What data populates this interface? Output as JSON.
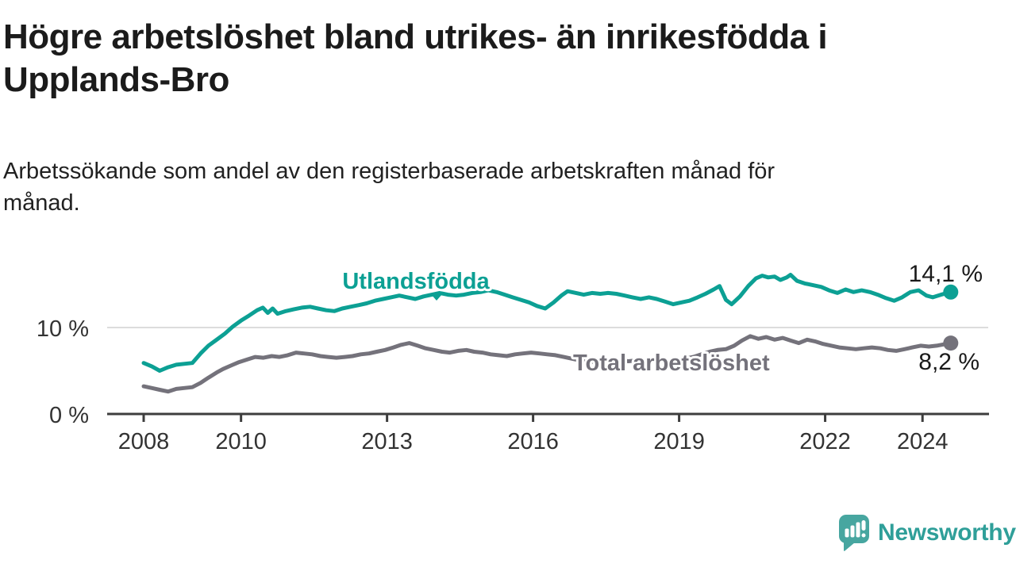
{
  "header": {
    "title": "Högre arbetslöshet bland utrikes- än inrikesfödda i Upplands-Bro",
    "title_lines": [
      "Högre arbetslöshet bland utrikes- än inrikesfödda i",
      "Upplands-Bro"
    ],
    "subtitle": "Arbetssökande som andel av den registerbaserade arbetskraften månad för månad.",
    "subtitle_lines": [
      "Arbetssökande som andel av den registerbaserade arbetskraften månad för",
      "månad."
    ]
  },
  "footer": {
    "brand": "Newsworthy",
    "brand_color": "#2f9f99",
    "logo_icon": "speech-bubble-bar-chart"
  },
  "colors": {
    "foreign_born_line": "#0ca094",
    "total_line": "#74727b",
    "gridline": "#dcdcdc",
    "axis": "#3d3d3d",
    "value_text": "#1a1a1a"
  },
  "chart_data": {
    "type": "line",
    "title": "Högre arbetslöshet bland utrikes- än inrikesfödda i Upplands-Bro",
    "subtitle": "Arbetssökande som andel av den registerbaserade arbetskraften månad för månad.",
    "xlabel": "",
    "ylabel": "",
    "grid": "horizontal-10-only",
    "legend_position": "inline-labels",
    "x_axis": {
      "domain": [
        2007.25,
        2025.35
      ],
      "ticks": [
        2008,
        2010,
        2013,
        2016,
        2019,
        2022,
        2024
      ],
      "tick_labels": [
        "2008",
        "2010",
        "2013",
        "2016",
        "2019",
        "2022",
        "2024"
      ]
    },
    "y_axis": {
      "domain": [
        0,
        19
      ],
      "ticks": [
        0,
        10
      ],
      "tick_labels": [
        "0 %",
        "10 %"
      ]
    },
    "series": [
      {
        "name": "Utlandsfödda",
        "color": "#0ca094",
        "end_value": 14.1,
        "end_label": "14,1 %",
        "points": [
          [
            2008.0,
            5.9
          ],
          [
            2008.17,
            5.5
          ],
          [
            2008.33,
            5.0
          ],
          [
            2008.5,
            5.4
          ],
          [
            2008.67,
            5.7
          ],
          [
            2008.83,
            5.8
          ],
          [
            2009.0,
            5.9
          ],
          [
            2009.17,
            7.0
          ],
          [
            2009.33,
            7.9
          ],
          [
            2009.5,
            8.6
          ],
          [
            2009.67,
            9.3
          ],
          [
            2009.83,
            10.1
          ],
          [
            2010.0,
            10.8
          ],
          [
            2010.17,
            11.4
          ],
          [
            2010.33,
            12.0
          ],
          [
            2010.45,
            12.3
          ],
          [
            2010.55,
            11.7
          ],
          [
            2010.65,
            12.2
          ],
          [
            2010.75,
            11.6
          ],
          [
            2010.92,
            11.9
          ],
          [
            2011.08,
            12.1
          ],
          [
            2011.25,
            12.3
          ],
          [
            2011.42,
            12.4
          ],
          [
            2011.58,
            12.2
          ],
          [
            2011.75,
            12.0
          ],
          [
            2011.92,
            11.9
          ],
          [
            2012.08,
            12.2
          ],
          [
            2012.25,
            12.4
          ],
          [
            2012.42,
            12.6
          ],
          [
            2012.58,
            12.8
          ],
          [
            2012.75,
            13.1
          ],
          [
            2012.92,
            13.3
          ],
          [
            2013.08,
            13.5
          ],
          [
            2013.25,
            13.7
          ],
          [
            2013.42,
            13.5
          ],
          [
            2013.58,
            13.3
          ],
          [
            2013.75,
            13.6
          ],
          [
            2013.92,
            13.8
          ],
          [
            2014.08,
            14.0
          ],
          [
            2014.25,
            13.8
          ],
          [
            2014.42,
            13.7
          ],
          [
            2014.58,
            13.8
          ],
          [
            2014.75,
            14.0
          ],
          [
            2014.92,
            14.1
          ],
          [
            2015.08,
            14.3
          ],
          [
            2015.25,
            14.1
          ],
          [
            2015.42,
            13.8
          ],
          [
            2015.58,
            13.5
          ],
          [
            2015.75,
            13.2
          ],
          [
            2015.92,
            12.9
          ],
          [
            2016.08,
            12.5
          ],
          [
            2016.25,
            12.2
          ],
          [
            2016.42,
            12.9
          ],
          [
            2016.58,
            13.7
          ],
          [
            2016.71,
            14.2
          ],
          [
            2016.88,
            14.0
          ],
          [
            2017.04,
            13.8
          ],
          [
            2017.21,
            14.0
          ],
          [
            2017.38,
            13.9
          ],
          [
            2017.54,
            14.0
          ],
          [
            2017.71,
            13.9
          ],
          [
            2017.88,
            13.7
          ],
          [
            2018.04,
            13.5
          ],
          [
            2018.21,
            13.3
          ],
          [
            2018.38,
            13.5
          ],
          [
            2018.54,
            13.3
          ],
          [
            2018.71,
            13.0
          ],
          [
            2018.88,
            12.7
          ],
          [
            2019.04,
            12.9
          ],
          [
            2019.21,
            13.1
          ],
          [
            2019.38,
            13.5
          ],
          [
            2019.54,
            13.9
          ],
          [
            2019.71,
            14.4
          ],
          [
            2019.83,
            14.8
          ],
          [
            2019.96,
            13.2
          ],
          [
            2020.08,
            12.7
          ],
          [
            2020.25,
            13.6
          ],
          [
            2020.42,
            14.8
          ],
          [
            2020.58,
            15.7
          ],
          [
            2020.71,
            16.0
          ],
          [
            2020.83,
            15.8
          ],
          [
            2020.96,
            15.9
          ],
          [
            2021.08,
            15.5
          ],
          [
            2021.21,
            15.8
          ],
          [
            2021.29,
            16.1
          ],
          [
            2021.42,
            15.4
          ],
          [
            2021.58,
            15.1
          ],
          [
            2021.75,
            14.9
          ],
          [
            2021.92,
            14.7
          ],
          [
            2022.08,
            14.3
          ],
          [
            2022.25,
            14.0
          ],
          [
            2022.42,
            14.4
          ],
          [
            2022.58,
            14.1
          ],
          [
            2022.75,
            14.3
          ],
          [
            2022.92,
            14.1
          ],
          [
            2023.08,
            13.8
          ],
          [
            2023.25,
            13.4
          ],
          [
            2023.42,
            13.1
          ],
          [
            2023.58,
            13.5
          ],
          [
            2023.75,
            14.1
          ],
          [
            2023.92,
            14.3
          ],
          [
            2024.08,
            13.7
          ],
          [
            2024.21,
            13.5
          ],
          [
            2024.38,
            13.8
          ],
          [
            2024.58,
            14.1
          ]
        ]
      },
      {
        "name": "Total arbetslöshet",
        "color": "#74727b",
        "end_value": 8.2,
        "end_label": "8,2 %",
        "points": [
          [
            2008.0,
            3.2
          ],
          [
            2008.17,
            3.0
          ],
          [
            2008.33,
            2.8
          ],
          [
            2008.5,
            2.6
          ],
          [
            2008.67,
            2.9
          ],
          [
            2008.83,
            3.0
          ],
          [
            2009.0,
            3.1
          ],
          [
            2009.17,
            3.6
          ],
          [
            2009.33,
            4.2
          ],
          [
            2009.5,
            4.8
          ],
          [
            2009.63,
            5.2
          ],
          [
            2009.79,
            5.6
          ],
          [
            2009.96,
            6.0
          ],
          [
            2010.13,
            6.3
          ],
          [
            2010.29,
            6.6
          ],
          [
            2010.46,
            6.5
          ],
          [
            2010.63,
            6.7
          ],
          [
            2010.79,
            6.6
          ],
          [
            2010.96,
            6.8
          ],
          [
            2011.13,
            7.1
          ],
          [
            2011.29,
            7.0
          ],
          [
            2011.46,
            6.9
          ],
          [
            2011.63,
            6.7
          ],
          [
            2011.79,
            6.6
          ],
          [
            2011.96,
            6.5
          ],
          [
            2012.13,
            6.6
          ],
          [
            2012.29,
            6.7
          ],
          [
            2012.46,
            6.9
          ],
          [
            2012.63,
            7.0
          ],
          [
            2012.79,
            7.2
          ],
          [
            2012.96,
            7.4
          ],
          [
            2013.13,
            7.7
          ],
          [
            2013.29,
            8.0
          ],
          [
            2013.46,
            8.2
          ],
          [
            2013.63,
            7.9
          ],
          [
            2013.79,
            7.6
          ],
          [
            2013.96,
            7.4
          ],
          [
            2014.13,
            7.2
          ],
          [
            2014.29,
            7.1
          ],
          [
            2014.46,
            7.3
          ],
          [
            2014.63,
            7.4
          ],
          [
            2014.79,
            7.2
          ],
          [
            2014.96,
            7.1
          ],
          [
            2015.13,
            6.9
          ],
          [
            2015.29,
            6.8
          ],
          [
            2015.46,
            6.7
          ],
          [
            2015.63,
            6.9
          ],
          [
            2015.79,
            7.0
          ],
          [
            2015.96,
            7.1
          ],
          [
            2016.13,
            7.0
          ],
          [
            2016.29,
            6.9
          ],
          [
            2016.46,
            6.8
          ],
          [
            2016.63,
            6.6
          ],
          [
            2016.79,
            6.4
          ],
          [
            2016.96,
            6.2
          ],
          [
            2017.13,
            6.1
          ],
          [
            2017.29,
            6.0
          ],
          [
            2017.46,
            6.2
          ],
          [
            2017.63,
            6.3
          ],
          [
            2017.79,
            6.2
          ],
          [
            2017.96,
            6.1
          ],
          [
            2018.13,
            6.2
          ],
          [
            2018.29,
            6.1
          ],
          [
            2018.46,
            6.2
          ],
          [
            2018.63,
            6.1
          ],
          [
            2018.79,
            6.0
          ],
          [
            2018.96,
            6.2
          ],
          [
            2019.13,
            6.4
          ],
          [
            2019.29,
            6.6
          ],
          [
            2019.46,
            6.9
          ],
          [
            2019.63,
            7.2
          ],
          [
            2019.79,
            7.4
          ],
          [
            2019.96,
            7.5
          ],
          [
            2020.13,
            7.9
          ],
          [
            2020.29,
            8.5
          ],
          [
            2020.46,
            9.0
          ],
          [
            2020.63,
            8.7
          ],
          [
            2020.79,
            8.9
          ],
          [
            2020.96,
            8.6
          ],
          [
            2021.13,
            8.8
          ],
          [
            2021.29,
            8.5
          ],
          [
            2021.46,
            8.2
          ],
          [
            2021.63,
            8.6
          ],
          [
            2021.79,
            8.4
          ],
          [
            2021.96,
            8.1
          ],
          [
            2022.13,
            7.9
          ],
          [
            2022.29,
            7.7
          ],
          [
            2022.46,
            7.6
          ],
          [
            2022.63,
            7.5
          ],
          [
            2022.79,
            7.6
          ],
          [
            2022.96,
            7.7
          ],
          [
            2023.13,
            7.6
          ],
          [
            2023.29,
            7.4
          ],
          [
            2023.46,
            7.3
          ],
          [
            2023.63,
            7.5
          ],
          [
            2023.79,
            7.7
          ],
          [
            2023.96,
            7.9
          ],
          [
            2024.13,
            7.8
          ],
          [
            2024.29,
            7.9
          ],
          [
            2024.58,
            8.2
          ]
        ]
      }
    ]
  }
}
